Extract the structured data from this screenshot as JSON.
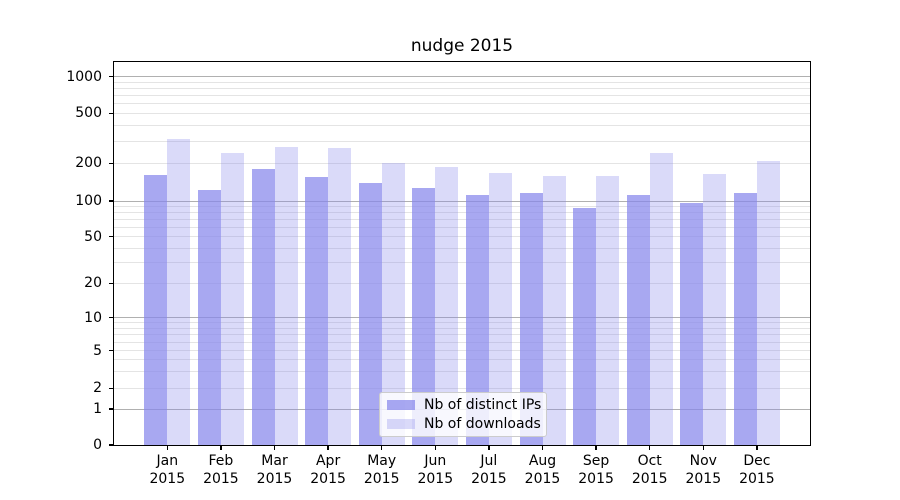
{
  "title": "nudge 2015",
  "chart_data": {
    "type": "bar",
    "title": "nudge 2015",
    "categories": [
      "Jan",
      "Feb",
      "Mar",
      "Apr",
      "May",
      "Jun",
      "Jul",
      "Aug",
      "Sep",
      "Oct",
      "Nov",
      "Dec"
    ],
    "year": "2015",
    "series": [
      {
        "name": "Nb of distinct IPs",
        "color_base": "#8686ec",
        "alpha": 0.72,
        "values": [
          160,
          122,
          180,
          155,
          138,
          126,
          111,
          116,
          87,
          111,
          97,
          115
        ]
      },
      {
        "name": "Nb of downloads",
        "color_base": "#8686ec",
        "alpha": 0.3,
        "values": [
          310,
          240,
          270,
          265,
          200,
          187,
          166,
          158,
          158,
          240,
          163,
          207
        ]
      }
    ],
    "yscale": "symlog",
    "yticks": [
      0,
      1,
      2,
      5,
      10,
      20,
      50,
      100,
      200,
      500,
      1000
    ],
    "ytick_labels": [
      "0",
      "1",
      "2",
      "5",
      "10",
      "20",
      "50",
      "100",
      "200",
      "500",
      "1000"
    ],
    "ylim": [
      0,
      1400
    ],
    "grid": true,
    "legend_position": "lower center"
  }
}
